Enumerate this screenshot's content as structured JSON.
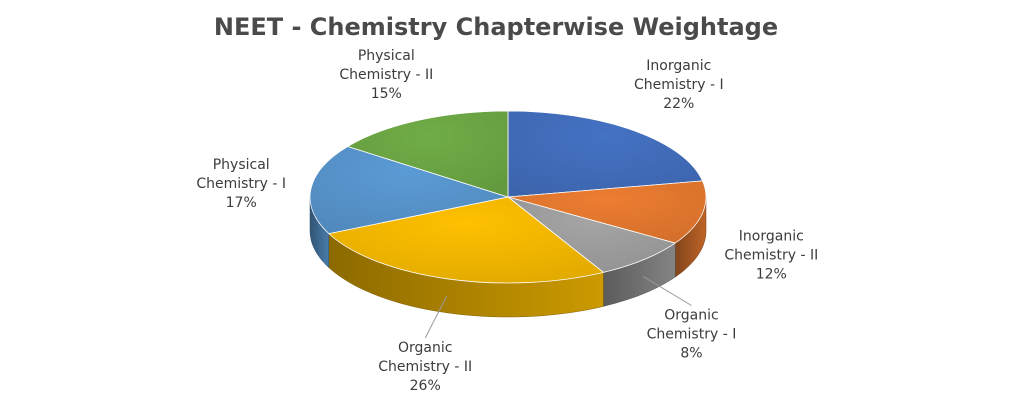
{
  "chart_data": {
    "type": "pie",
    "title": "NEET - Chemistry Chapterwise Weightage",
    "style": "3d",
    "slices": [
      {
        "label": "Inorganic Chemistry - I",
        "label_lines": [
          "Inorganic",
          "Chemistry - I"
        ],
        "value": 22,
        "value_label": "22%",
        "color": "#4472c4"
      },
      {
        "label": "Inorganic Chemistry - II",
        "label_lines": [
          "Inorganic",
          "Chemistry - II"
        ],
        "value": 12,
        "value_label": "12%",
        "color": "#ed7d31"
      },
      {
        "label": "Organic Chemistry - I",
        "label_lines": [
          "Organic",
          "Chemistry - I"
        ],
        "value": 8,
        "value_label": "8%",
        "color": "#a5a5a5"
      },
      {
        "label": "Organic Chemistry - II",
        "label_lines": [
          "Organic",
          "Chemistry - II"
        ],
        "value": 26,
        "value_label": "26%",
        "color": "#ffc000"
      },
      {
        "label": "Physical Chemistry - I",
        "label_lines": [
          "Physical",
          "Chemistry - I"
        ],
        "value": 17,
        "value_label": "17%",
        "color": "#5b9bd5"
      },
      {
        "label": "Physical Chemistry - II",
        "label_lines": [
          "Physical",
          "Chemistry - II"
        ],
        "value": 15,
        "value_label": "15%",
        "color": "#70ad47"
      }
    ],
    "legend": "none",
    "data_labels": "outside with category name and percentage"
  }
}
